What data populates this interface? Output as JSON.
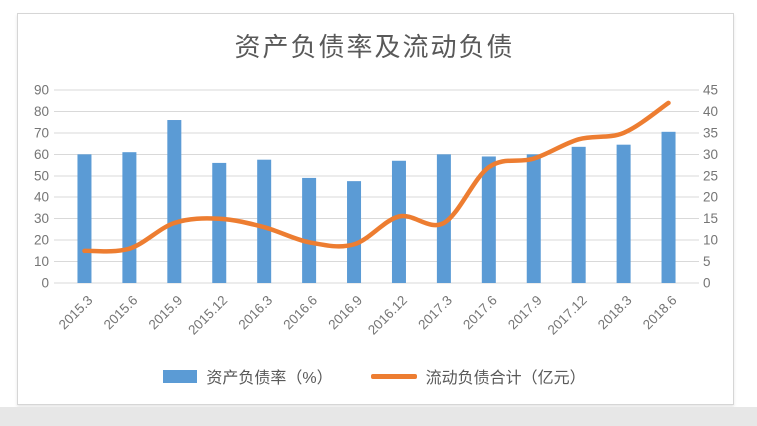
{
  "page": {
    "bottom_strip_color": "#e7e7e7"
  },
  "chart": {
    "title": "资产负债率及流动负债",
    "legend": [
      {
        "label": "资产负债率（%）",
        "type": "bar",
        "color": "#5B9BD5"
      },
      {
        "label": "流动负债合计（亿元）",
        "type": "line",
        "color": "#ED7D31"
      }
    ]
  },
  "chart_data": {
    "type": "combo",
    "title": "资产负债率及流动负债",
    "categories": [
      "2015.3",
      "2015.6",
      "2015.9",
      "2015.12",
      "2016.3",
      "2016.6",
      "2016.9",
      "2016.12",
      "2017.3",
      "2017.6",
      "2017.9",
      "2017.12",
      "2018.3",
      "2018.6"
    ],
    "series": [
      {
        "name": "资产负债率（%）",
        "type": "bar",
        "axis": "left",
        "color": "#5B9BD5",
        "values": [
          60,
          61,
          76,
          56,
          57.5,
          49,
          47.5,
          57,
          60,
          59,
          60,
          63.5,
          64.5,
          70.5
        ]
      },
      {
        "name": "流动负债合计（亿元）",
        "type": "line",
        "axis": "right",
        "color": "#ED7D31",
        "values": [
          7.5,
          8,
          14,
          15,
          13,
          9.5,
          9,
          15.5,
          14,
          27,
          29,
          33.5,
          35,
          42
        ]
      }
    ],
    "left_axis": {
      "min": 0,
      "max": 90,
      "step": 10,
      "ticks": [
        0,
        10,
        20,
        30,
        40,
        50,
        60,
        70,
        80,
        90
      ]
    },
    "right_axis": {
      "min": 0,
      "max": 45,
      "step": 5,
      "ticks": [
        0,
        5,
        10,
        15,
        20,
        25,
        30,
        35,
        40,
        45
      ]
    },
    "grid": true,
    "legend_position": "bottom",
    "x_label_rotation": -45,
    "colors": {
      "grid": "#d9d9d9",
      "tick_text": "#757575",
      "title_text": "#595959",
      "legend_text": "#595959"
    }
  }
}
